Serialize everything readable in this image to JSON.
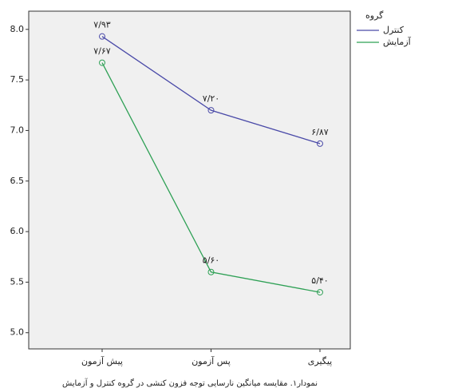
{
  "chart_data": {
    "type": "line",
    "caption": "نمودار۱. مقایسه میانگین نارسایی توجه فزون کنشی در گروه کنترل و آزمایش",
    "legend_title": "گروه",
    "categories": [
      "پیش آزمون",
      "پس آزمون",
      "پیگیری"
    ],
    "series": [
      {
        "name": "کنترل",
        "color": "#4a4aa8",
        "values": [
          7.93,
          7.2,
          6.87
        ],
        "value_labels": [
          "۷/۹۳",
          "۷/۲۰",
          "۶/۸۷"
        ]
      },
      {
        "name": "آزمایش",
        "color": "#2ea055",
        "values": [
          7.67,
          5.6,
          5.4
        ],
        "value_labels": [
          "۷/۶۷",
          "۵/۶۰",
          "۵/۴۰"
        ]
      }
    ],
    "ylim": [
      4.84,
      8.18
    ],
    "yticks": [
      {
        "value": 5,
        "label": "5.0"
      },
      5.5,
      {
        "value": 6,
        "label": "6.0"
      },
      6.5,
      {
        "value": 7,
        "label": "7.0"
      },
      7.5,
      {
        "value": 8,
        "label": "8.0"
      }
    ],
    "legend": "right"
  }
}
